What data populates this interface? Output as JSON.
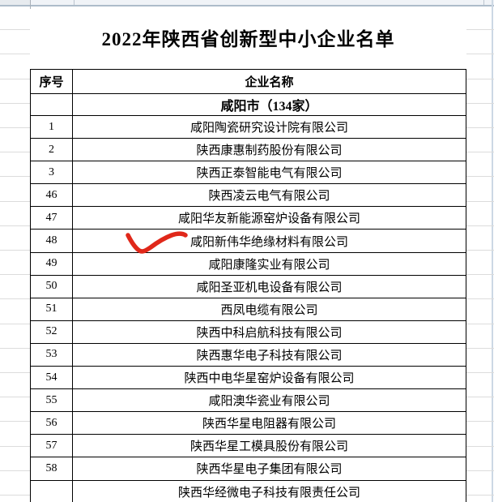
{
  "title": "2022年陕西省创新型中小企业名单",
  "table": {
    "headers": [
      "序号",
      "企业名称"
    ],
    "section": "咸阳市（134家）",
    "rows": [
      {
        "no": "1",
        "name": "咸阳陶瓷研究设计院有限公司"
      },
      {
        "no": "2",
        "name": "陕西康惠制药股份有限公司"
      },
      {
        "no": "3",
        "name": "陕西正泰智能电气有限公司"
      },
      {
        "no": "46",
        "name": "陕西凌云电气有限公司"
      },
      {
        "no": "47",
        "name": "咸阳华友新能源窑炉设备有限公司"
      },
      {
        "no": "48",
        "name": "咸阳新伟华绝缘材料有限公司"
      },
      {
        "no": "49",
        "name": "咸阳康隆实业有限公司"
      },
      {
        "no": "50",
        "name": "咸阳圣亚机电设备有限公司"
      },
      {
        "no": "51",
        "name": "西凤电缆有限公司"
      },
      {
        "no": "52",
        "name": "陕西中科启航科技有限公司"
      },
      {
        "no": "53",
        "name": "陕西惠华电子科技有限公司"
      },
      {
        "no": "54",
        "name": "陕西中电华星窑炉设备有限公司"
      },
      {
        "no": "55",
        "name": "咸阳澳华瓷业有限公司"
      },
      {
        "no": "56",
        "name": "陕西华星电阻器有限公司"
      },
      {
        "no": "57",
        "name": "陕西华星工模具股份有限公司"
      },
      {
        "no": "58",
        "name": "陕西华星电子集团有限公司"
      }
    ],
    "partial_row": {
      "no": "",
      "name": "陕西华经微电子科技有限责任公司"
    }
  },
  "annotation": {
    "type": "hand-drawn red checkmark",
    "marked_row_no": "48",
    "color": "#e0281a"
  },
  "colors": {
    "table_border": "#000000",
    "margin_gridline": "#dcdcdc",
    "top_strip_fill": "#f0f3f7",
    "top_strip_border": "#adbcca",
    "check_red": "#e0281a"
  }
}
